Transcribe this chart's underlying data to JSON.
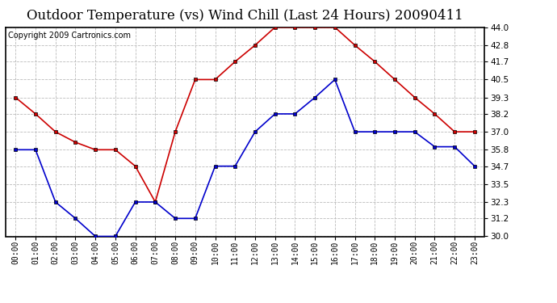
{
  "title": "Outdoor Temperature (vs) Wind Chill (Last 24 Hours) 20090411",
  "copyright": "Copyright 2009 Cartronics.com",
  "hours": [
    "00:00",
    "01:00",
    "02:00",
    "03:00",
    "04:00",
    "05:00",
    "06:00",
    "07:00",
    "08:00",
    "09:00",
    "10:00",
    "11:00",
    "12:00",
    "13:00",
    "14:00",
    "15:00",
    "16:00",
    "17:00",
    "18:00",
    "19:00",
    "20:00",
    "21:00",
    "22:00",
    "23:00"
  ],
  "temp": [
    35.8,
    35.8,
    32.3,
    31.2,
    30.0,
    30.0,
    32.3,
    32.3,
    31.2,
    31.2,
    34.7,
    34.7,
    37.0,
    38.2,
    38.2,
    39.3,
    40.5,
    37.0,
    37.0,
    37.0,
    37.0,
    36.0,
    36.0,
    34.7
  ],
  "wind_chill": [
    39.3,
    38.2,
    37.0,
    36.3,
    35.8,
    35.8,
    34.7,
    32.3,
    37.0,
    40.5,
    40.5,
    41.7,
    42.8,
    44.0,
    44.0,
    44.0,
    44.0,
    42.8,
    41.7,
    40.5,
    39.3,
    38.2,
    37.0,
    37.0
  ],
  "temp_color": "#0000cc",
  "wind_chill_color": "#cc0000",
  "bg_color": "#ffffff",
  "plot_bg_color": "#ffffff",
  "grid_color": "#bbbbbb",
  "ylim_min": 30.0,
  "ylim_max": 44.0,
  "yticks": [
    30.0,
    31.2,
    32.3,
    33.5,
    34.7,
    35.8,
    37.0,
    38.2,
    39.3,
    40.5,
    41.7,
    42.8,
    44.0
  ],
  "title_fontsize": 12,
  "copyright_fontsize": 7
}
